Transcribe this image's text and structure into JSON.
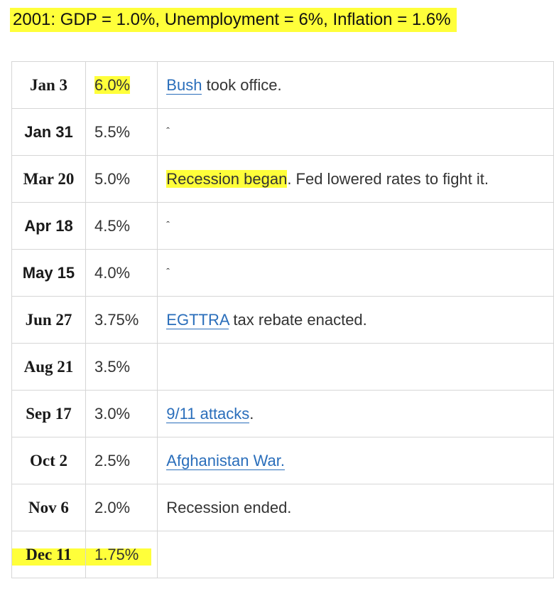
{
  "heading": "2001: GDP = 1.0%, Unemployment = 6%, Inflation = 1.6%",
  "rows": [
    {
      "date": "Jan 3",
      "rate": "6.0%",
      "note_pre": "",
      "note_link": "Bush",
      "note_post": " took office."
    },
    {
      "date": "Jan 31",
      "rate": "5.5%",
      "note_text": "ˆ"
    },
    {
      "date": "Mar 20",
      "rate": "5.0%",
      "note_highlight": "Recession began",
      "note_post": ". Fed lowered rates to fight it."
    },
    {
      "date": "Apr 18",
      "rate": "4.5%",
      "note_text": "ˆ"
    },
    {
      "date": "May 15",
      "rate": "4.0%",
      "note_text": "ˆ"
    },
    {
      "date": "Jun 27",
      "rate": "3.75%",
      "note_link": "EGTTRA",
      "note_post": " tax rebate enacted."
    },
    {
      "date": "Aug 21",
      "rate": "3.5%",
      "note_text": ""
    },
    {
      "date": "Sep 17",
      "rate": "3.0%",
      "note_link": "9/11 attacks",
      "note_post": "."
    },
    {
      "date": "Oct 2",
      "rate": "2.5%",
      "note_link": "Afghanistan War.",
      "note_post": ""
    },
    {
      "date": "Nov 6",
      "rate": "2.0%",
      "note_text": "Recession ended."
    },
    {
      "date": "Dec 11",
      "rate": "1.75%",
      "note_text": ""
    }
  ],
  "colors": {
    "highlight": "#ffff3a",
    "link": "#2a6ebb",
    "border": "#d6d6d6"
  }
}
